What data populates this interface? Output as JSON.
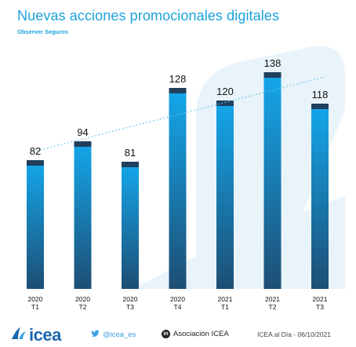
{
  "title": "Nuevas acciones promocionales digitales",
  "subtitle": "Observer Seguros",
  "chart_data": {
    "type": "bar",
    "categories": [
      [
        "2020",
        "T1"
      ],
      [
        "2020",
        "T2"
      ],
      [
        "2020",
        "T3"
      ],
      [
        "2020",
        "T4"
      ],
      [
        "2021",
        "T1"
      ],
      [
        "2021",
        "T2"
      ],
      [
        "2021",
        "T3"
      ]
    ],
    "values": [
      82,
      94,
      81,
      128,
      120,
      138,
      118
    ],
    "data_labels": [
      "82",
      "94",
      "81",
      "128",
      "120",
      "138",
      "118"
    ],
    "trendline": "dotted linear",
    "grid": false,
    "legend": "none",
    "ylim": [
      0,
      160
    ]
  },
  "colors": {
    "title": "#1aa3dc",
    "bar_top": "#14a8ec",
    "bar_bottom": "#1d4e74",
    "bar_cap": "#1f3f5c",
    "trendline": "#5ec8e8",
    "background_shape": "#e9f3fa"
  },
  "footer": {
    "logo_text": "icea",
    "twitter_handle": "@icea_es",
    "linkedin_name": "Asociación ICEA",
    "source_date": "ICEA al Día - 06/10/2021"
  },
  "icons": [
    "icea-logo-icon",
    "twitter-icon",
    "linkedin-icon"
  ]
}
